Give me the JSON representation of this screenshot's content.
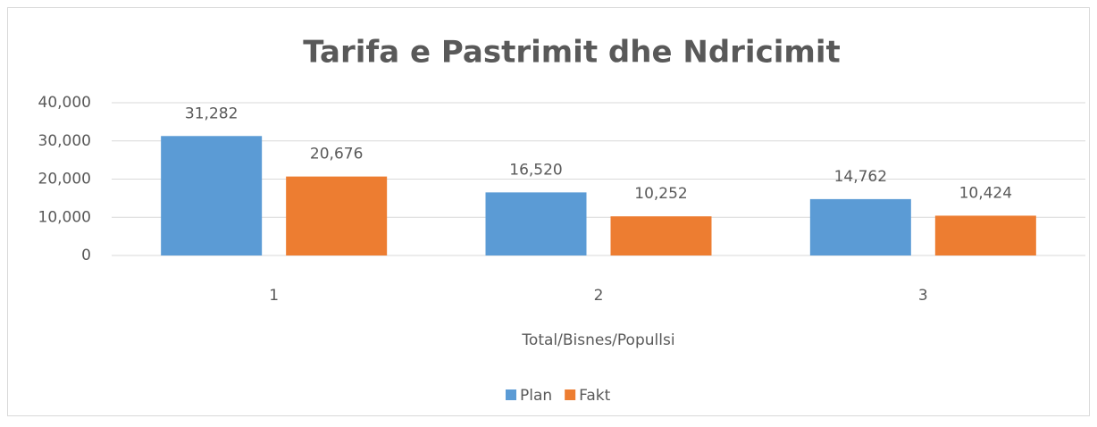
{
  "chart_data": {
    "type": "bar",
    "title": "Tarifa e Pastrimit dhe Ndricimit",
    "x_label": "Total/Bisnes/Popullsi",
    "categories": [
      "1",
      "2",
      "3"
    ],
    "series": [
      {
        "name": "Plan",
        "color": "#5b9bd5",
        "values": [
          31282,
          16520,
          14762
        ],
        "value_labels": [
          "31,282",
          "16,520",
          "14,762"
        ]
      },
      {
        "name": "Fakt",
        "color": "#ed7d31",
        "values": [
          20676,
          10252,
          10424
        ],
        "value_labels": [
          "20,676",
          "10,252",
          "10,424"
        ]
      }
    ],
    "ylim": [
      0,
      40000
    ],
    "yticks": [
      0,
      {
        "value": 10000,
        "label": "10,000"
      },
      {
        "value": 20000,
        "label": "20,000"
      },
      {
        "value": 30000,
        "label": "30,000"
      },
      {
        "value": 40000,
        "label": "40,000"
      }
    ],
    "grid": true,
    "legend": "bottom"
  }
}
